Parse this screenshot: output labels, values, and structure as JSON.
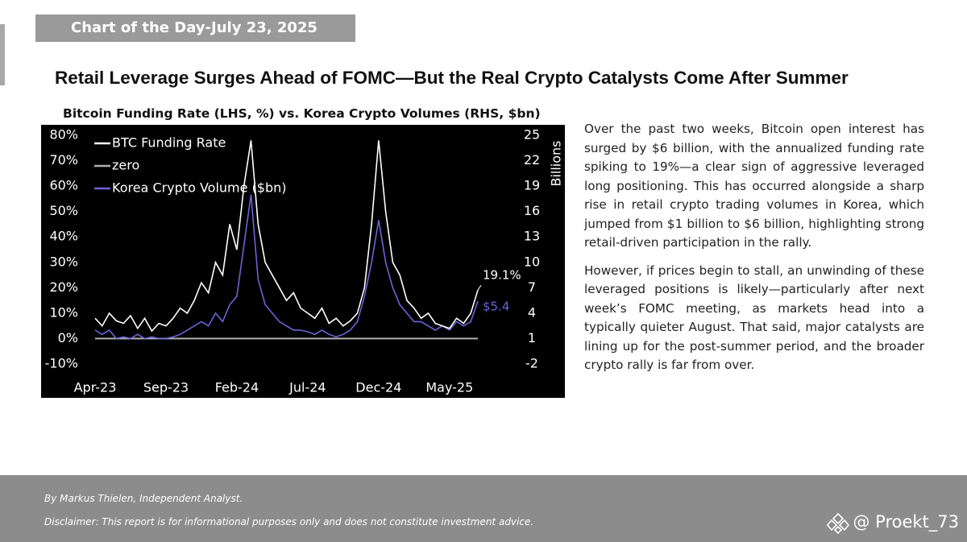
{
  "header": {
    "banner": "Chart of the Day-July 23, 2025",
    "headline": "Retail Leverage Surges Ahead of FOMC—But the Real Crypto Catalysts Come After Summer"
  },
  "chart_data": {
    "type": "line",
    "title": "Bitcoin Funding Rate (LHS, %) vs. Korea Crypto Volumes (RHS, $bn)",
    "y2_label": "Billions",
    "categories": [
      "Apr-23",
      null,
      null,
      null,
      null,
      null,
      null,
      null,
      null,
      null,
      "Sep-23",
      null,
      null,
      null,
      null,
      null,
      null,
      null,
      null,
      null,
      "Feb-24",
      null,
      null,
      null,
      null,
      null,
      null,
      null,
      null,
      null,
      "Jul-24",
      null,
      null,
      null,
      null,
      null,
      null,
      null,
      null,
      null,
      "Dec-24",
      null,
      null,
      null,
      null,
      null,
      null,
      null,
      null,
      null,
      "May-25",
      null,
      null,
      null,
      null
    ],
    "series": [
      {
        "name": "BTC Funding Rate",
        "color": "#ffffff",
        "values": [
          8,
          5,
          10,
          7,
          6,
          9,
          4,
          8,
          3,
          6,
          5,
          8,
          12,
          10,
          15,
          22,
          18,
          30,
          25,
          45,
          35,
          60,
          78,
          45,
          30,
          25,
          20,
          15,
          18,
          12,
          10,
          8,
          12,
          6,
          8,
          5,
          7,
          10,
          20,
          45,
          78,
          50,
          30,
          25,
          15,
          12,
          8,
          10,
          6,
          5,
          4,
          8,
          6,
          10,
          19.1
        ]
      },
      {
        "name": "zero",
        "color": "#b0b0b0",
        "values": [
          0,
          0,
          0,
          0,
          0,
          0,
          0,
          0,
          0,
          0,
          0,
          0,
          0,
          0,
          0,
          0,
          0,
          0,
          0,
          0,
          0,
          0,
          0,
          0,
          0,
          0,
          0,
          0,
          0,
          0,
          0,
          0,
          0,
          0,
          0,
          0,
          0,
          0,
          0,
          0,
          0,
          0,
          0,
          0,
          0,
          0,
          0,
          0,
          0,
          0,
          0,
          0,
          0,
          0,
          0
        ]
      },
      {
        "name": "Korea Crypto Volume ($bn)",
        "color": "#6f62d6",
        "axis": "y2",
        "values": [
          2,
          1.5,
          2,
          1,
          1.2,
          1,
          1.5,
          1,
          1.2,
          1,
          1,
          1.2,
          1.5,
          2,
          2.5,
          3,
          2.5,
          4,
          3,
          5,
          6,
          12,
          18,
          8,
          5,
          4,
          3,
          2.5,
          2,
          2,
          1.8,
          1.5,
          2,
          1.5,
          1.2,
          1.5,
          2,
          3,
          6,
          10,
          15,
          10,
          7,
          5,
          4,
          3,
          3,
          2.5,
          2,
          2.5,
          2,
          3,
          2.5,
          3,
          5.4
        ]
      }
    ],
    "ylim": [
      -10,
      80
    ],
    "yticks": [
      {
        "value": -10,
        "label": "-10%"
      },
      {
        "value": 0,
        "label": "0%"
      },
      {
        "value": 10,
        "label": "10%"
      },
      {
        "value": 20,
        "label": "20%"
      },
      {
        "value": 30,
        "label": "30%"
      },
      {
        "value": 40,
        "label": "40%"
      },
      {
        "value": 50,
        "label": "50%"
      },
      {
        "value": 60,
        "label": "60%"
      },
      {
        "value": 70,
        "label": "70%"
      },
      {
        "value": 80,
        "label": "80%"
      }
    ],
    "y2lim": [
      -2,
      25
    ],
    "y2ticks": [
      -2,
      1,
      4,
      7,
      10,
      13,
      16,
      19,
      22,
      25
    ],
    "annotations": [
      {
        "text": "19.1%",
        "color": "#ffffff"
      },
      {
        "text": "$5.4",
        "color": "#6f62d6"
      }
    ],
    "legend": "top-left",
    "grid": false
  },
  "body": {
    "paragraphs": [
      "Over the past two weeks, Bitcoin open interest has surged by $6 billion, with the annualized funding rate spiking to 19%—a clear sign of aggressive leveraged long positioning. This has occurred alongside a sharp rise in retail crypto trading volumes in Korea, which jumped from $1 billion to $6 billion, highlighting strong retail-driven participation in the rally.",
      "However, if prices begin to stall, an unwinding of these leveraged positions is likely—particularly after next week’s FOMC meeting, as markets head into a typically quieter August. That said, major catalysts are lining up for the post-summer period, and the broader crypto rally is far from over."
    ]
  },
  "footer": {
    "author": "By Markus Thielen, Independent Analyst.",
    "disclaimer": "Disclaimer: This report is for informational purposes only and does not constitute investment advice.",
    "watermark": "@ Proekt_73"
  }
}
